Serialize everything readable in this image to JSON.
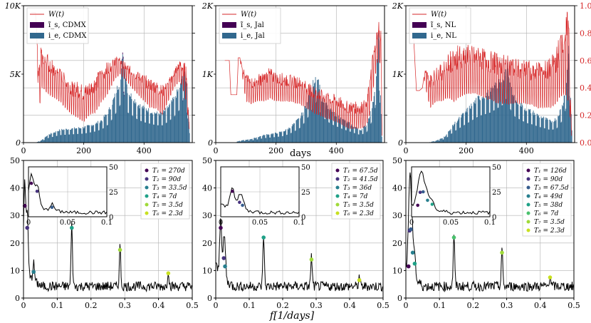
{
  "figure": {
    "xlabel_top": "days",
    "xlabel_bottom": "f[1/days]"
  },
  "colors": {
    "series_w": "#d62728",
    "series_is": "#440154",
    "series_ie": "#31688e",
    "peak_palette": [
      "#440154",
      "#46327e",
      "#365c8d",
      "#277f8e",
      "#1fa187",
      "#4ac16d",
      "#a0da39",
      "#c8e020"
    ],
    "spectrum": "#000000",
    "grid": "#b0b0b0"
  },
  "chart_data": [
    {
      "id": "cdmx_ts",
      "type": "area",
      "panel": "top-left",
      "xlim": [
        0,
        560
      ],
      "ylim": [
        0,
        10000
      ],
      "xticks": [
        0,
        200,
        400
      ],
      "yticks": [
        0,
        5000,
        10000
      ],
      "ytick_labels": [
        "0",
        "5K",
        "10K"
      ],
      "y2lim": [
        0,
        1
      ],
      "legend": [
        "W(t)",
        "ĩ_s, CDMX",
        "i_e, CDMX"
      ],
      "legend_placement": "upper-left",
      "series": [
        {
          "name": "i_e, CDMX",
          "kind": "bars",
          "envelope_x": [
            0,
            40,
            60,
            80,
            120,
            160,
            200,
            240,
            260,
            280,
            300,
            320,
            330,
            345,
            360,
            380,
            400,
            420,
            440,
            460,
            480,
            500,
            520,
            530,
            540,
            550
          ],
          "envelope_y": [
            0,
            0,
            200,
            600,
            1000,
            1100,
            1200,
            1500,
            1800,
            2400,
            3500,
            5000,
            7000,
            4000,
            3600,
            3000,
            2700,
            2500,
            2300,
            2300,
            2800,
            3500,
            4500,
            5800,
            4800,
            800
          ]
        },
        {
          "name": "ĩ_s, CDMX",
          "kind": "bars",
          "envelope_x": [
            0,
            40,
            60,
            80,
            120,
            160,
            200,
            240,
            260,
            280,
            300,
            320,
            330,
            345,
            360,
            380,
            400,
            420,
            440,
            460,
            480,
            500,
            520,
            530,
            540,
            550
          ],
          "envelope_y": [
            0,
            0,
            180,
            550,
            950,
            1050,
            1150,
            1450,
            1750,
            2350,
            3400,
            4900,
            7200,
            3900,
            3500,
            2900,
            2600,
            2400,
            2200,
            2200,
            2700,
            3400,
            4400,
            5900,
            4700,
            750
          ]
        },
        {
          "name": "W(t)",
          "kind": "line",
          "axis": "right",
          "x": [
            25,
            40,
            50,
            55,
            60,
            80,
            100,
            120,
            140,
            160,
            180,
            200,
            220,
            240,
            260,
            280,
            300,
            320,
            340,
            360,
            380,
            400,
            420,
            440,
            460,
            480,
            500,
            520,
            540,
            550
          ],
          "low": [
            0.95,
            0.95,
            0.3,
            0.28,
            0.4,
            0.35,
            0.32,
            0.3,
            0.25,
            0.2,
            0.18,
            0.15,
            0.2,
            0.22,
            0.3,
            0.35,
            0.45,
            0.5,
            0.45,
            0.4,
            0.35,
            0.3,
            0.25,
            0.25,
            0.2,
            0.3,
            0.4,
            0.45,
            0.3,
            0.1
          ],
          "high": [
            0.95,
            0.95,
            0.6,
            0.72,
            0.75,
            0.65,
            0.6,
            0.55,
            0.5,
            0.45,
            0.45,
            0.42,
            0.45,
            0.5,
            0.55,
            0.6,
            0.65,
            0.62,
            0.58,
            0.55,
            0.52,
            0.5,
            0.48,
            0.45,
            0.42,
            0.45,
            0.55,
            0.6,
            0.58,
            0.1
          ]
        }
      ]
    },
    {
      "id": "jal_ts",
      "type": "area",
      "panel": "top-middle",
      "xlim": [
        0,
        560
      ],
      "ylim": [
        0,
        2000
      ],
      "xticks": [
        0,
        200,
        400
      ],
      "yticks": [
        0,
        1000,
        2000
      ],
      "ytick_labels": [
        "0",
        "1K",
        "2K"
      ],
      "y2lim": [
        0,
        1
      ],
      "legend": [
        "W(t)",
        "ĩ_s, Jal",
        "i_e, Jal"
      ],
      "legend_placement": "upper-left",
      "series": [
        {
          "name": "i_e, Jal",
          "kind": "bars",
          "envelope_x": [
            0,
            60,
            80,
            120,
            160,
            200,
            220,
            240,
            260,
            280,
            300,
            320,
            335,
            350,
            380,
            420,
            460,
            480,
            500,
            520,
            530,
            540,
            545,
            550
          ],
          "envelope_y": [
            0,
            0,
            30,
            60,
            120,
            150,
            170,
            220,
            300,
            400,
            600,
            900,
            1100,
            700,
            500,
            360,
            250,
            200,
            280,
            600,
            1000,
            1700,
            900,
            100
          ]
        },
        {
          "name": "ĩ_s, Jal",
          "kind": "bars",
          "envelope_x": [
            0,
            60,
            80,
            120,
            160,
            200,
            220,
            240,
            260,
            280,
            300,
            320,
            335,
            350,
            380,
            420,
            460,
            480,
            500,
            520,
            530,
            540,
            545,
            550
          ],
          "envelope_y": [
            0,
            0,
            28,
            55,
            115,
            145,
            165,
            210,
            290,
            390,
            590,
            880,
            1080,
            690,
            490,
            350,
            240,
            190,
            270,
            580,
            980,
            1650,
            880,
            90
          ]
        },
        {
          "name": "W(t)",
          "kind": "line",
          "axis": "right",
          "x": [
            30,
            45,
            50,
            60,
            70,
            75,
            80,
            100,
            120,
            140,
            160,
            180,
            200,
            240,
            280,
            320,
            360,
            400,
            440,
            480,
            500,
            510,
            520,
            530,
            540,
            548,
            552
          ],
          "low": [
            0.6,
            0.6,
            0.35,
            0.35,
            0.35,
            0.62,
            0.62,
            0.3,
            0.28,
            0.3,
            0.3,
            0.32,
            0.3,
            0.3,
            0.28,
            0.22,
            0.18,
            0.15,
            0.1,
            0.1,
            0.12,
            0.2,
            0.35,
            0.5,
            0.6,
            0.55,
            0.05
          ],
          "high": [
            0.6,
            0.6,
            0.35,
            0.35,
            0.35,
            0.62,
            0.62,
            0.5,
            0.48,
            0.5,
            0.52,
            0.55,
            0.52,
            0.5,
            0.48,
            0.42,
            0.38,
            0.35,
            0.3,
            0.3,
            0.32,
            0.45,
            0.65,
            0.75,
            0.92,
            0.85,
            0.05
          ]
        }
      ]
    },
    {
      "id": "nl_ts",
      "type": "area",
      "panel": "top-right",
      "xlim": [
        0,
        560
      ],
      "ylim": [
        0,
        2000
      ],
      "xticks": [
        0,
        200,
        400
      ],
      "yticks": [
        0,
        1000,
        2000
      ],
      "ytick_labels": [
        "0",
        "1K",
        "2K"
      ],
      "y2lim": [
        0,
        1
      ],
      "y2ticks": [
        0,
        0.2,
        0.4,
        0.6,
        0.8,
        1.0
      ],
      "legend": [
        "W(t)",
        "ĩ_s, NL",
        "i_e, NL"
      ],
      "legend_placement": "upper-left",
      "series": [
        {
          "name": "i_e, NL",
          "kind": "bars",
          "envelope_x": [
            0,
            70,
            100,
            130,
            160,
            200,
            240,
            280,
            300,
            320,
            335,
            345,
            360,
            380,
            400,
            420,
            440,
            460,
            480,
            500,
            520,
            530,
            540,
            550
          ],
          "envelope_y": [
            0,
            0,
            30,
            100,
            300,
            500,
            700,
            800,
            900,
            1000,
            1200,
            900,
            700,
            600,
            520,
            480,
            420,
            380,
            330,
            380,
            600,
            900,
            1500,
            200
          ]
        },
        {
          "name": "ĩ_s, NL",
          "kind": "bars",
          "envelope_x": [
            0,
            70,
            100,
            130,
            160,
            200,
            240,
            280,
            300,
            320,
            335,
            345,
            360,
            380,
            400,
            420,
            440,
            460,
            480,
            500,
            520,
            530,
            540,
            550
          ],
          "envelope_y": [
            0,
            0,
            28,
            95,
            290,
            490,
            690,
            790,
            890,
            990,
            1190,
            890,
            690,
            590,
            510,
            470,
            410,
            370,
            320,
            370,
            590,
            880,
            1450,
            180
          ]
        },
        {
          "name": "W(t)",
          "kind": "line",
          "axis": "right",
          "x": [
            15,
            25,
            35,
            45,
            55,
            60,
            65,
            80,
            100,
            120,
            140,
            160,
            180,
            200,
            240,
            280,
            320,
            360,
            400,
            440,
            480,
            500,
            520,
            540,
            550
          ],
          "low": [
            0.8,
            0.8,
            0.38,
            0.38,
            0.4,
            0.48,
            0.4,
            0.25,
            0.3,
            0.3,
            0.32,
            0.3,
            0.32,
            0.35,
            0.35,
            0.3,
            0.28,
            0.28,
            0.28,
            0.25,
            0.25,
            0.28,
            0.35,
            0.3,
            0.05
          ],
          "high": [
            0.8,
            0.8,
            0.38,
            0.38,
            0.4,
            0.48,
            0.55,
            0.5,
            0.55,
            0.58,
            0.65,
            0.7,
            0.72,
            0.72,
            0.7,
            0.68,
            0.65,
            0.62,
            0.6,
            0.6,
            0.62,
            0.7,
            0.9,
            0.98,
            0.05
          ]
        }
      ]
    },
    {
      "id": "cdmx_spec",
      "type": "line",
      "panel": "bottom-left",
      "xlim": [
        0,
        0.5
      ],
      "ylim": [
        0,
        50
      ],
      "xticks": [
        0,
        0.1,
        0.2,
        0.3,
        0.4,
        0.5
      ],
      "yticks": [
        0,
        10,
        20,
        30,
        40,
        50
      ],
      "legend": [
        "T₁ = 270d",
        "T₂ = 90d",
        "T₃ = 33.5d",
        "T₄ = 7d",
        "T₅ = 3.5d",
        "T₆ = 2.3d"
      ],
      "peaks": [
        {
          "f": 0.0037,
          "a": 33.5
        },
        {
          "f": 0.011,
          "a": 25.5
        },
        {
          "f": 0.03,
          "a": 9.5
        },
        {
          "f": 0.143,
          "a": 25.5
        },
        {
          "f": 0.286,
          "a": 17.5
        },
        {
          "f": 0.429,
          "a": 9.0
        }
      ],
      "inset": {
        "xlim": [
          0,
          0.1
        ],
        "ylim": [
          0,
          50
        ],
        "xticks": [
          0,
          0.05,
          0.1
        ],
        "yticks": [
          0,
          25,
          50
        ]
      }
    },
    {
      "id": "jal_spec",
      "type": "line",
      "panel": "bottom-middle",
      "xlim": [
        0,
        0.5
      ],
      "ylim": [
        0,
        50
      ],
      "xticks": [
        0,
        0.1,
        0.2,
        0.3,
        0.4,
        0.5
      ],
      "yticks": [
        0,
        10,
        20,
        30,
        40,
        50
      ],
      "legend": [
        "T₁ = 67.5d",
        "T₂ = 41.5d",
        "T₃ = 36d",
        "T₄ = 7d",
        "T₅ = 3.5d",
        "T₆ = 2.3d"
      ],
      "peaks": [
        {
          "f": 0.0148,
          "a": 25.5
        },
        {
          "f": 0.024,
          "a": 14.5
        },
        {
          "f": 0.0278,
          "a": 11.5
        },
        {
          "f": 0.143,
          "a": 22.0
        },
        {
          "f": 0.286,
          "a": 14.0
        },
        {
          "f": 0.429,
          "a": 6.5
        }
      ],
      "inset": {
        "xlim": [
          0,
          0.1
        ],
        "ylim": [
          0,
          50
        ],
        "xticks": [
          0,
          0.05,
          0.1
        ],
        "yticks": [
          0,
          25,
          50
        ]
      }
    },
    {
      "id": "nl_spec",
      "type": "line",
      "panel": "bottom-right",
      "xlim": [
        0,
        0.5
      ],
      "ylim": [
        0,
        50
      ],
      "xticks": [
        0,
        0.1,
        0.2,
        0.3,
        0.4,
        0.5
      ],
      "yticks": [
        0,
        10,
        20,
        30,
        40,
        50
      ],
      "legend": [
        "T₁ = 126d",
        "T₂ = 90d",
        "T₃ = 67.5d",
        "T₄ = 49d",
        "T₅ = 38d",
        "T₆ = 7d",
        "T₇ = 3.5d",
        "T₈ = 2.3d"
      ],
      "peaks": [
        {
          "f": 0.0079,
          "a": 11.5
        },
        {
          "f": 0.011,
          "a": 24.5
        },
        {
          "f": 0.0148,
          "a": 25.0
        },
        {
          "f": 0.0204,
          "a": 16.5
        },
        {
          "f": 0.0263,
          "a": 12.5
        },
        {
          "f": 0.143,
          "a": 22.0
        },
        {
          "f": 0.286,
          "a": 16.5
        },
        {
          "f": 0.429,
          "a": 7.5
        }
      ],
      "inset": {
        "xlim": [
          0,
          0.1
        ],
        "ylim": [
          0,
          50
        ],
        "xticks": [
          0,
          0.05,
          0.1
        ],
        "yticks": [
          0,
          25,
          50
        ]
      }
    }
  ]
}
